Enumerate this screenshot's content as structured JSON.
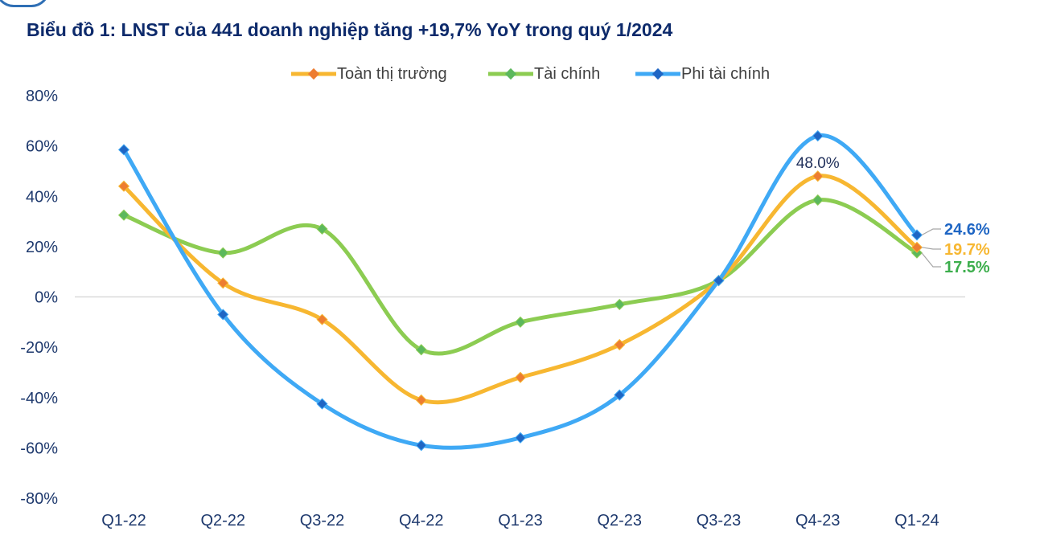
{
  "chart_data": {
    "type": "line",
    "title": "Biểu đồ 1: LNST của 441 doanh nghiệp tăng +19,7% YoY trong quý 1/2024",
    "categories": [
      "Q1-22",
      "Q2-22",
      "Q3-22",
      "Q4-22",
      "Q1-23",
      "Q2-23",
      "Q3-23",
      "Q4-23",
      "Q1-24"
    ],
    "series": [
      {
        "name": "Toàn thị trường",
        "color": "#f7b731",
        "marker_color": "#ed7d31",
        "values": [
          44,
          5.5,
          -9,
          -41,
          -32,
          -19,
          6.5,
          48.0,
          19.7
        ]
      },
      {
        "name": "Tài chính",
        "color": "#8ccc52",
        "marker_color": "#5cb85c",
        "values": [
          32.5,
          17.5,
          27,
          -21,
          -10,
          -3,
          6.5,
          38.5,
          17.5
        ]
      },
      {
        "name": "Phi tài chính",
        "color": "#3fa9f5",
        "marker_color": "#1f66c4",
        "values": [
          58.5,
          -7,
          -42.5,
          -59,
          -56,
          -39,
          6.5,
          64,
          24.6
        ]
      }
    ],
    "ylim": [
      -80,
      80
    ],
    "yticks": [
      "80%",
      "60%",
      "40%",
      "20%",
      "0%",
      "-20%",
      "-40%",
      "-60%",
      "-80%"
    ],
    "ytick_values": [
      80,
      60,
      40,
      20,
      0,
      -20,
      -40,
      -60,
      -80
    ],
    "legend_position": "top",
    "grid": false,
    "data_labels": [
      {
        "text": "48.0%",
        "series": 0,
        "index": 7,
        "color": "#1f2f5a"
      },
      {
        "text": "24.6%",
        "series": 2,
        "index": 8,
        "color": "#1f66c4"
      },
      {
        "text": "19.7%",
        "series": 0,
        "index": 8,
        "color": "#f7b731"
      },
      {
        "text": "17.5%",
        "series": 1,
        "index": 8,
        "color": "#3cae4c"
      }
    ]
  }
}
